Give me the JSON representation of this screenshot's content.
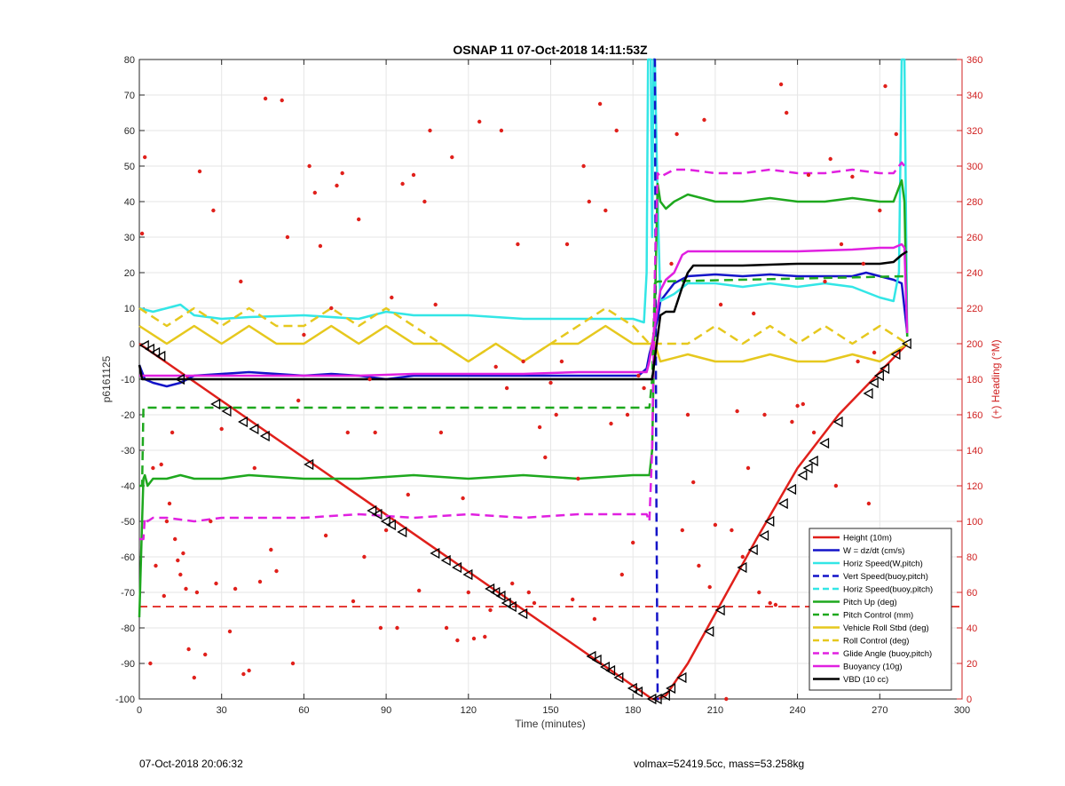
{
  "chart_data": {
    "type": "line",
    "title": "OSNAP 11 07-Oct-2018 14:11:53Z",
    "xlabel": "Time (minutes)",
    "ylabel": "p6161125",
    "y2label": "(+) Heading (°M)",
    "xlim": [
      0,
      300
    ],
    "ylim": [
      -100,
      80
    ],
    "y2lim": [
      0,
      360
    ],
    "xticks": [
      0,
      30,
      60,
      90,
      120,
      150,
      180,
      210,
      240,
      270,
      300
    ],
    "yticks": [
      -100,
      -90,
      -80,
      -70,
      -60,
      -50,
      -40,
      -30,
      -20,
      -10,
      0,
      10,
      20,
      30,
      40,
      50,
      60,
      70,
      80
    ],
    "y2ticks": [
      0,
      20,
      40,
      60,
      80,
      100,
      120,
      140,
      160,
      180,
      200,
      220,
      240,
      260,
      280,
      300,
      320,
      340,
      360
    ],
    "grid": true,
    "legend_position": "bottom-right",
    "colors": {
      "red": "#e0201b",
      "blue": "#1414c8",
      "cyan": "#33e6e6",
      "green": "#1ea81e",
      "yellow": "#e6c81e",
      "magenta": "#e020e0",
      "black": "#000000",
      "heading_axis": "#d02020"
    },
    "series": [
      {
        "name": "Height (10m)",
        "color": "#e0201b",
        "style": "solid",
        "x": [
          0,
          187,
          189,
          192,
          200,
          210,
          225,
          240,
          255,
          270,
          280
        ],
        "y": [
          0,
          -100,
          -100,
          -99,
          -90,
          -76,
          -55,
          -35,
          -20,
          -8,
          0
        ]
      },
      {
        "name": "W = dz/dt (cm/s)",
        "color": "#1414c8",
        "style": "solid",
        "x": [
          0,
          2,
          5,
          10,
          15,
          20,
          30,
          40,
          50,
          60,
          70,
          80,
          90,
          100,
          110,
          120,
          130,
          150,
          170,
          182,
          185,
          186,
          187,
          188,
          189,
          190,
          192,
          195,
          200,
          210,
          220,
          230,
          240,
          250,
          260,
          265,
          270,
          275,
          278,
          280
        ],
        "y": [
          -6,
          -10,
          -11,
          -12,
          -11,
          -9,
          -8.5,
          -8,
          -8.5,
          -9,
          -8.5,
          -9,
          -10,
          -9,
          -9,
          -9,
          -9,
          -9,
          -9,
          -9,
          -7,
          -3,
          0,
          4,
          7,
          12,
          14,
          17,
          19,
          19.5,
          19,
          19.5,
          19,
          19,
          19,
          20,
          19,
          18,
          17,
          3
        ]
      },
      {
        "name": "Horiz Speed(W,pitch)",
        "color": "#33e6e6",
        "style": "solid",
        "x": [
          0,
          5,
          10,
          15,
          20,
          30,
          40,
          60,
          80,
          90,
          100,
          120,
          140,
          160,
          180,
          184,
          185,
          185.5,
          186.5,
          187,
          187.5,
          188,
          189,
          190,
          195,
          200,
          210,
          220,
          230,
          240,
          250,
          260,
          270,
          275,
          277,
          278,
          279,
          280
        ],
        "y": [
          10,
          9,
          10,
          11,
          8,
          7,
          7.5,
          8,
          7,
          9,
          8,
          8,
          7,
          7,
          7,
          6,
          20,
          80,
          80,
          30,
          80,
          80,
          40,
          12,
          14,
          17,
          17,
          16,
          17,
          16,
          17,
          16,
          13,
          12,
          20,
          80,
          80,
          2
        ]
      },
      {
        "name": "Vert Speed(buoy,pitch)",
        "color": "#1414c8",
        "style": "dashed",
        "x": [
          187.5,
          188,
          188.5,
          189,
          189.5
        ],
        "y": [
          80,
          80,
          -40,
          -100,
          -100
        ]
      },
      {
        "name": "Horiz Speed(buoy,pitch)",
        "color": "#33e6e6",
        "style": "dashed",
        "x": [],
        "y": []
      },
      {
        "name": "Pitch Up (deg)",
        "color": "#1ea81e",
        "style": "solid",
        "x": [
          0,
          1,
          1.5,
          2,
          3,
          5,
          10,
          15,
          20,
          30,
          40,
          60,
          80,
          100,
          120,
          140,
          160,
          180,
          186,
          187,
          188,
          189,
          190,
          192,
          195,
          200,
          205,
          210,
          220,
          230,
          240,
          250,
          260,
          270,
          275,
          278,
          279,
          280
        ],
        "y": [
          -77,
          -50,
          -38,
          -37,
          -40,
          -38,
          -38,
          -37,
          -38,
          -38,
          -37,
          -38,
          -38,
          -37,
          -38,
          -37,
          -38,
          -37,
          -37,
          -30,
          10,
          45,
          40,
          38,
          40,
          42,
          41,
          40,
          40,
          41,
          40,
          40,
          41,
          40,
          40,
          46,
          40,
          2
        ]
      },
      {
        "name": "Pitch Control (mm)",
        "color": "#1ea81e",
        "style": "dashed",
        "x": [
          0,
          1,
          1.5,
          186,
          187,
          188,
          189,
          280
        ],
        "y": [
          -40,
          -40,
          -18,
          -18,
          -10,
          17,
          17.5,
          19
        ]
      },
      {
        "name": "Vehicle Roll Stbd (deg)",
        "color": "#e6c81e",
        "style": "solid",
        "x": [
          0,
          10,
          20,
          30,
          40,
          50,
          60,
          70,
          80,
          90,
          100,
          110,
          120,
          130,
          140,
          150,
          160,
          170,
          180,
          186,
          188,
          190,
          200,
          210,
          220,
          230,
          240,
          250,
          260,
          270,
          280
        ],
        "y": [
          5,
          0,
          5,
          0,
          5,
          0,
          0,
          5,
          0,
          5,
          0,
          0,
          -5,
          0,
          -5,
          0,
          0,
          5,
          0,
          0,
          0,
          -5,
          -3,
          -5,
          -5,
          -3,
          -5,
          -5,
          -3,
          -5,
          0
        ]
      },
      {
        "name": "Roll Control (deg)",
        "color": "#e6c81e",
        "style": "dashed",
        "x": [
          0,
          10,
          20,
          30,
          40,
          50,
          60,
          70,
          80,
          90,
          100,
          110,
          120,
          130,
          140,
          150,
          160,
          170,
          180,
          186,
          188,
          190,
          200,
          210,
          220,
          230,
          240,
          250,
          260,
          270,
          280
        ],
        "y": [
          10,
          5,
          10,
          5,
          10,
          5,
          5,
          10,
          5,
          10,
          5,
          0,
          -5,
          0,
          -5,
          0,
          5,
          10,
          5,
          0,
          0,
          0,
          0,
          5,
          0,
          5,
          0,
          5,
          0,
          5,
          0
        ]
      },
      {
        "name": "Glide Angle (buoy,pitch)",
        "color": "#e020e0",
        "style": "dashed",
        "x": [
          0,
          1.5,
          2,
          3,
          5,
          10,
          20,
          30,
          40,
          60,
          80,
          100,
          120,
          140,
          160,
          180,
          185,
          186,
          187,
          188,
          189,
          190,
          195,
          200,
          210,
          220,
          230,
          240,
          250,
          260,
          270,
          275,
          278,
          279
        ],
        "y": [
          -55,
          -55,
          -49,
          -50,
          -49,
          -49,
          -50,
          -49,
          -49,
          -49,
          -48,
          -49,
          -48,
          -49,
          -48,
          -48,
          -48,
          -50,
          -30,
          20,
          48,
          47,
          49,
          49,
          48,
          48,
          49,
          48,
          48,
          49,
          48,
          48,
          51,
          50
        ]
      },
      {
        "name": "Buoyancy (10g)",
        "color": "#e020e0",
        "style": "solid",
        "x": [
          0,
          5,
          20,
          40,
          60,
          80,
          100,
          120,
          140,
          160,
          180,
          185,
          186,
          187,
          188,
          189,
          190,
          192,
          195,
          198,
          200,
          210,
          220,
          240,
          260,
          270,
          275,
          278,
          279,
          280
        ],
        "y": [
          -9,
          -9,
          -9,
          -9,
          -9,
          -9,
          -8.5,
          -8.5,
          -8.5,
          -8,
          -8,
          -8,
          -5,
          0,
          5,
          10,
          15,
          18,
          20,
          25,
          26,
          26,
          26,
          26,
          26.5,
          27,
          27,
          28,
          27,
          3
        ]
      },
      {
        "name": "VBD (10 cc)",
        "color": "#000000",
        "style": "solid",
        "x": [
          0,
          1,
          2,
          5,
          20,
          60,
          100,
          140,
          180,
          186,
          187,
          188,
          189,
          190,
          192,
          195,
          198,
          200,
          202,
          205,
          210,
          220,
          240,
          260,
          270,
          275,
          278,
          280
        ],
        "y": [
          -6,
          -10,
          -10,
          -10,
          -10,
          -10,
          -10,
          -10,
          -10,
          -10,
          -10,
          -4,
          2,
          8,
          9,
          9,
          16,
          20,
          22,
          22,
          22,
          22,
          22.5,
          22.5,
          22.5,
          23,
          25,
          26
        ]
      }
    ],
    "heading_points": {
      "axis": "right",
      "color": "#e0201b",
      "x": [
        1,
        2,
        4,
        5,
        6,
        8,
        9,
        10,
        11,
        12,
        13,
        14,
        15,
        16,
        17,
        18,
        20,
        21,
        22,
        24,
        26,
        27,
        28,
        30,
        33,
        35,
        37,
        38,
        40,
        42,
        44,
        46,
        48,
        50,
        52,
        54,
        56,
        58,
        60,
        62,
        64,
        66,
        68,
        70,
        72,
        74,
        76,
        78,
        80,
        82,
        84,
        86,
        88,
        90,
        92,
        94,
        96,
        98,
        100,
        102,
        104,
        106,
        108,
        110,
        112,
        114,
        116,
        118,
        120,
        122,
        124,
        126,
        128,
        130,
        132,
        134,
        136,
        138,
        140,
        142,
        144,
        146,
        148,
        150,
        152,
        154,
        156,
        158,
        160,
        162,
        164,
        166,
        168,
        170,
        172,
        174,
        176,
        178,
        180,
        182,
        184,
        194,
        196,
        198,
        200,
        202,
        204,
        206,
        208,
        210,
        212,
        214,
        216,
        218,
        220,
        222,
        224,
        226,
        228,
        230,
        232,
        234,
        236,
        238,
        240,
        242,
        244,
        246,
        248,
        250,
        252,
        254,
        256,
        258,
        260,
        262,
        264,
        266,
        268,
        270,
        272,
        274,
        276
      ],
      "y": [
        262,
        305,
        20,
        130,
        75,
        132,
        58,
        100,
        110,
        150,
        90,
        78,
        70,
        82,
        62,
        28,
        12,
        60,
        297,
        25,
        100,
        275,
        65,
        152,
        38,
        62,
        235,
        14,
        16,
        130,
        66,
        338,
        84,
        72,
        337,
        260,
        20,
        168,
        205,
        300,
        285,
        255,
        92,
        220,
        289,
        296,
        150,
        55,
        270,
        80,
        180,
        150,
        40,
        95,
        226,
        40,
        290,
        115,
        295,
        61,
        280,
        320,
        222,
        150,
        40,
        305,
        33,
        113,
        60,
        34,
        325,
        35,
        50,
        187,
        320,
        175,
        65,
        256,
        190,
        60,
        54,
        153,
        136,
        178,
        160,
        190,
        256,
        56,
        124,
        300,
        280,
        45,
        335,
        275,
        155,
        320,
        70,
        160,
        88,
        182,
        175,
        245,
        318,
        95,
        160,
        122,
        75,
        326,
        63,
        98,
        222,
        0,
        95,
        162,
        80,
        130,
        217,
        60,
        160,
        54,
        53,
        346,
        330,
        156,
        165,
        166,
        295,
        150,
        74,
        235,
        304,
        120,
        256,
        65,
        294,
        190,
        245,
        110,
        195,
        275,
        345,
        90,
        318
      ]
    },
    "dive_markers": {
      "symbol": "left-triangle",
      "x": [
        2,
        4,
        6,
        8,
        15,
        28,
        32,
        38,
        42,
        46,
        62,
        85,
        87,
        90,
        92,
        96,
        108,
        112,
        116,
        120,
        128,
        130,
        132,
        134,
        136,
        140,
        165,
        167,
        170,
        172,
        175,
        180,
        182,
        187,
        189,
        192,
        194,
        198,
        208,
        212,
        220,
        224,
        228,
        230,
        235,
        238,
        242,
        244,
        246,
        250,
        255,
        266,
        268,
        270,
        272,
        276,
        280
      ],
      "y": [
        -0.5,
        -1.5,
        -2.5,
        -3.5,
        -10,
        -17,
        -19,
        -22,
        -24,
        -26,
        -34,
        -47,
        -48,
        -50,
        -51,
        -53,
        -59,
        -61,
        -63,
        -65,
        -69,
        -70,
        -71,
        -73,
        -74,
        -76,
        -88,
        -89,
        -91,
        -92,
        -94,
        -97,
        -98,
        -100,
        -100,
        -99,
        -97,
        -94,
        -81,
        -75,
        -63,
        -58,
        -54,
        -50,
        -45,
        -41,
        -37,
        -35,
        -33,
        -28,
        -22,
        -14,
        -11,
        -9,
        -7,
        -3,
        0
      ]
    },
    "reference_line": {
      "color": "#e0201b",
      "style": "dashed",
      "y": -74
    }
  },
  "footer": {
    "left": "07-Oct-2018 20:06:32",
    "right": "volmax=52419.5cc, mass=53.258kg"
  }
}
